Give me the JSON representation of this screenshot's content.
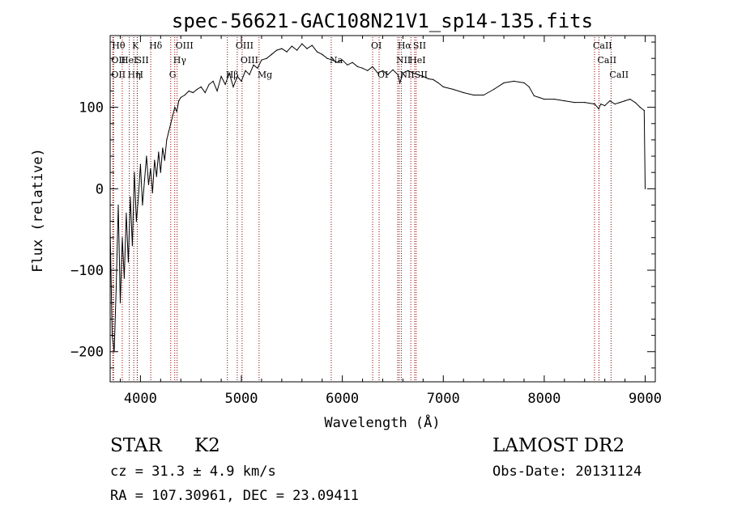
{
  "chart_data": {
    "type": "line",
    "title": "spec-56621-GAC108N21V1_sp14-135.fits",
    "xlabel": "Wavelength (Å)",
    "ylabel": "Flux (relative)",
    "xlim": [
      3700,
      9100
    ],
    "ylim": [
      -237,
      188
    ],
    "x_ticks": [
      4000,
      5000,
      6000,
      7000,
      8000,
      9000
    ],
    "y_ticks": [
      -200,
      -100,
      0,
      100
    ],
    "grid": false,
    "line_color": "#000000",
    "marker_color": "#8b0000",
    "series": [
      {
        "x": [
          3700,
          3720,
          3740,
          3760,
          3780,
          3800,
          3820,
          3840,
          3860,
          3880,
          3900,
          3920,
          3940,
          3960,
          3980,
          4000,
          4020,
          4040,
          4060,
          4080,
          4100,
          4120,
          4140,
          4160,
          4180,
          4200,
          4220,
          4240,
          4260,
          4280,
          4300,
          4320,
          4340,
          4360,
          4380,
          4400,
          4440,
          4480,
          4520,
          4560,
          4600,
          4640,
          4680,
          4720,
          4760,
          4800,
          4840,
          4880,
          4920,
          4960,
          5000,
          5040,
          5080,
          5120,
          5160,
          5200,
          5250,
          5300,
          5350,
          5400,
          5450,
          5500,
          5550,
          5600,
          5650,
          5700,
          5750,
          5800,
          5850,
          5900,
          5950,
          6000,
          6050,
          6100,
          6150,
          6200,
          6250,
          6300,
          6350,
          6400,
          6450,
          6500,
          6550,
          6570,
          6600,
          6650,
          6700,
          6750,
          6800,
          6850,
          6900,
          6950,
          7000,
          7100,
          7200,
          7300,
          7400,
          7500,
          7600,
          7700,
          7800,
          7850,
          7900,
          7950,
          8000,
          8100,
          8200,
          8300,
          8400,
          8500,
          8540,
          8560,
          8600,
          8650,
          8700,
          8750,
          8800,
          8850,
          8900,
          8950,
          8990,
          9000
        ],
        "y": [
          -50,
          -180,
          -200,
          -120,
          -20,
          -140,
          -60,
          -110,
          -30,
          -90,
          -10,
          -70,
          20,
          -40,
          -10,
          30,
          -20,
          10,
          40,
          5,
          25,
          -5,
          35,
          15,
          45,
          20,
          50,
          35,
          60,
          70,
          80,
          90,
          100,
          95,
          108,
          112,
          115,
          120,
          118,
          122,
          125,
          118,
          128,
          132,
          120,
          138,
          128,
          142,
          125,
          138,
          132,
          145,
          140,
          152,
          148,
          158,
          160,
          165,
          170,
          172,
          168,
          175,
          170,
          178,
          172,
          176,
          168,
          165,
          160,
          158,
          155,
          158,
          152,
          155,
          150,
          148,
          145,
          150,
          142,
          145,
          140,
          146,
          140,
          130,
          142,
          145,
          142,
          140,
          138,
          135,
          134,
          130,
          125,
          122,
          118,
          115,
          115,
          122,
          130,
          132,
          130,
          125,
          114,
          112,
          110,
          110,
          108,
          106,
          106,
          104,
          98,
          104,
          102,
          108,
          104,
          106,
          108,
          110,
          106,
          100,
          96,
          0
        ]
      }
    ],
    "line_markers": [
      {
        "x": 3734,
        "label": "Hθ",
        "tier": 0
      },
      {
        "x": 3727,
        "label": "OII",
        "tier": 1
      },
      {
        "x": 3727,
        "label": "OII",
        "tier": 2
      },
      {
        "x": 3820,
        "label": "HeI",
        "tier": 1
      },
      {
        "x": 3889,
        "label": "Hη",
        "tier": 2
      },
      {
        "x": 3934,
        "label": "K",
        "tier": 0
      },
      {
        "x": 3968,
        "label": "H",
        "tier": 2
      },
      {
        "x": 3969,
        "label": "SII",
        "tier": 1
      },
      {
        "x": 4102,
        "label": "Hδ",
        "tier": 0
      },
      {
        "x": 4300,
        "label": "G",
        "tier": 2
      },
      {
        "x": 4340,
        "label": "Hγ",
        "tier": 1
      },
      {
        "x": 4363,
        "label": "OIII",
        "tier": 0
      },
      {
        "x": 4861,
        "label": "Hβ",
        "tier": 2
      },
      {
        "x": 4959,
        "label": "OIII",
        "tier": 0
      },
      {
        "x": 5007,
        "label": "OIII",
        "tier": 1
      },
      {
        "x": 5175,
        "label": "Mg",
        "tier": 2
      },
      {
        "x": 5890,
        "label": "Na",
        "tier": 1
      },
      {
        "x": 6300,
        "label": "OI",
        "tier": 0
      },
      {
        "x": 6364,
        "label": "OI",
        "tier": 2
      },
      {
        "x": 6548,
        "label": "NII",
        "tier": 1
      },
      {
        "x": 6563,
        "label": "Hα",
        "tier": 0
      },
      {
        "x": 6584,
        "label": "NII",
        "tier": 2
      },
      {
        "x": 6678,
        "label": "HeI",
        "tier": 1
      },
      {
        "x": 6716,
        "label": "SII",
        "tier": 0
      },
      {
        "x": 6731,
        "label": "SII",
        "tier": 2
      },
      {
        "x": 8498,
        "label": "CaII",
        "tier": 0
      },
      {
        "x": 8542,
        "label": "CaII",
        "tier": 1
      },
      {
        "x": 8662,
        "label": "CaII",
        "tier": 2
      }
    ]
  },
  "footer": {
    "object_class": "STAR",
    "subclass": "K2",
    "survey": "LAMOST DR2",
    "redshift": "cz = 31.3 ± 4.9 km/s",
    "obs_date": "Obs-Date: 20131124",
    "coords": "RA = 107.30961, DEC =  23.09411"
  }
}
